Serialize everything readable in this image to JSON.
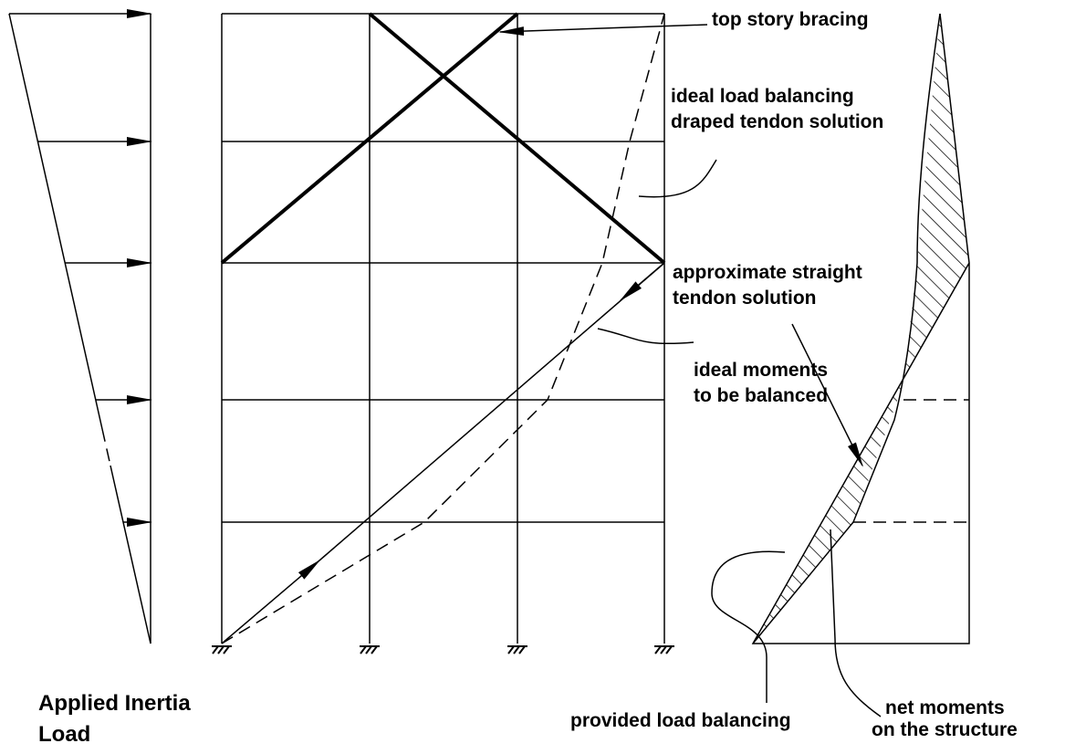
{
  "labels": {
    "bracing": [
      "top story bracing"
    ],
    "draped": [
      "ideal load balancing",
      "draped tendon solution"
    ],
    "straight": [
      "approximate straight",
      "tendon solution"
    ],
    "ideal_moments": [
      "ideal moments",
      "to be balanced"
    ],
    "provided": [
      "provided load balancing"
    ],
    "net": [
      "net moments",
      "on the structure"
    ],
    "inertia": [
      "Applied Inertia",
      "Load"
    ]
  }
}
